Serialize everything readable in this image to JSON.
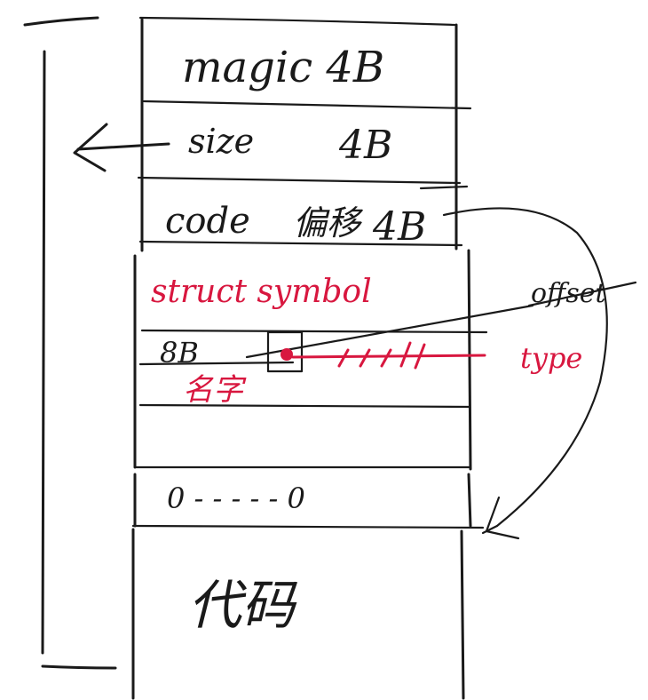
{
  "diagram": {
    "colors": {
      "ink": "#1a1a1a",
      "accent": "#d8173f",
      "background": "#ffffff"
    },
    "labels": {
      "magic": "magic 4B",
      "size_name": "size",
      "size_bytes": "4B",
      "code_name": "code",
      "code_offset": "偏移",
      "code_bytes": "4B",
      "struct_symbol": "struct symbol",
      "name_size": "8B",
      "name_cn": "名字",
      "offset": "offset",
      "type": "type",
      "terminator": "0 - - - - - 0",
      "code_section": "代码"
    }
  }
}
